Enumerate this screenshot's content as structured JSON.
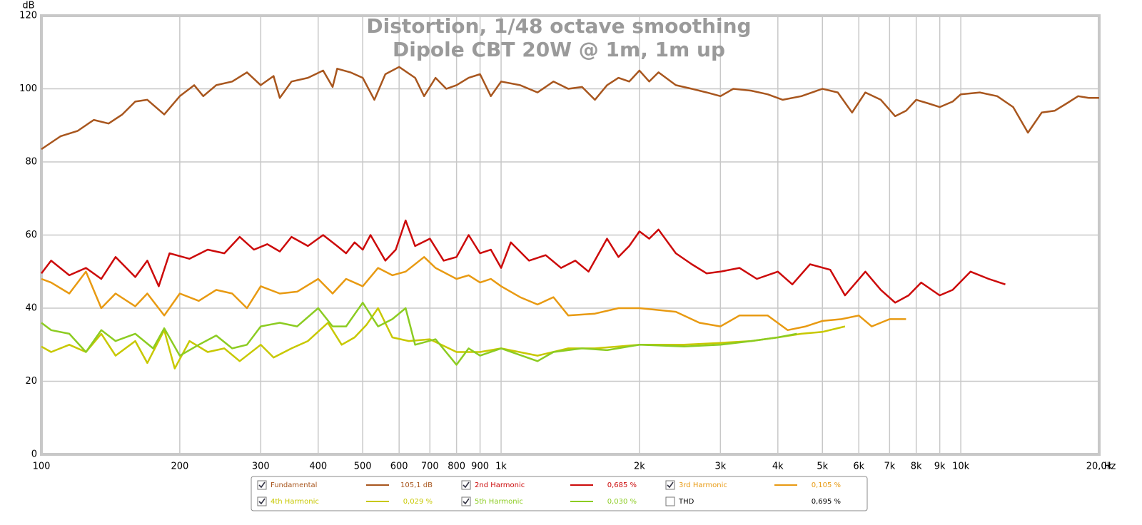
{
  "chart_data": {
    "type": "line",
    "title": "Distortion, 1/48 octave smoothing",
    "subtitle": "Dipole CBT 20W @ 1m, 1m up",
    "y_label": "dB",
    "x_label": "Hz",
    "log_x": true,
    "grid": true,
    "xlim": [
      100,
      20000
    ],
    "ylim": [
      0,
      120
    ],
    "yticks": [
      0,
      20,
      40,
      60,
      80,
      100,
      120
    ],
    "xticks": [
      100,
      200,
      300,
      400,
      500,
      600,
      700,
      800,
      900,
      {
        "value": 1000,
        "label": "1k"
      },
      {
        "value": 2000,
        "label": "2k"
      },
      {
        "value": 3000,
        "label": "3k"
      },
      {
        "value": 4000,
        "label": "4k"
      },
      {
        "value": 5000,
        "label": "5k"
      },
      {
        "value": 6000,
        "label": "6k"
      },
      {
        "value": 7000,
        "label": "7k"
      },
      {
        "value": 8000,
        "label": "8k"
      },
      {
        "value": 9000,
        "label": "9k"
      },
      {
        "value": 10000,
        "label": "10k"
      },
      {
        "value": 20000,
        "label": "20,0k"
      }
    ],
    "series": [
      {
        "name": "Fundamental",
        "color": "#a8561e",
        "checked": true,
        "readout": "105,1 dB",
        "x": [
          100,
          110,
          120,
          130,
          140,
          150,
          160,
          170,
          185,
          200,
          215,
          225,
          240,
          260,
          280,
          300,
          320,
          330,
          350,
          380,
          410,
          430,
          440,
          470,
          500,
          530,
          560,
          600,
          650,
          680,
          720,
          760,
          800,
          850,
          900,
          950,
          1000,
          1100,
          1200,
          1300,
          1400,
          1500,
          1600,
          1700,
          1800,
          1900,
          2000,
          2100,
          2200,
          2400,
          2600,
          2800,
          3000,
          3200,
          3500,
          3800,
          4100,
          4500,
          5000,
          5400,
          5800,
          6200,
          6700,
          7200,
          7600,
          8000,
          8500,
          9000,
          9600,
          10000,
          11000,
          12000,
          13000,
          14000,
          15000,
          16000,
          17000,
          18000,
          19000,
          20000
        ],
        "values": [
          83.5,
          87,
          88.5,
          91.5,
          90.5,
          93,
          96.5,
          97,
          93,
          98,
          101,
          98,
          101,
          102,
          104.5,
          101,
          103.5,
          97.5,
          102,
          103,
          105,
          100.5,
          105.5,
          104.5,
          103,
          97,
          104,
          106,
          103,
          98,
          103,
          100,
          101,
          103,
          104,
          98,
          102,
          101,
          99,
          102,
          100,
          100.5,
          97,
          101,
          103,
          102,
          105,
          102,
          104.5,
          101,
          100,
          99,
          98,
          100,
          99.5,
          98.5,
          97,
          98,
          100,
          99,
          93.5,
          99,
          97,
          92.5,
          94,
          97,
          96,
          95,
          96.5,
          98.5,
          99,
          98,
          95,
          88,
          93.5,
          94,
          96,
          98,
          97.5,
          97.5
        ]
      },
      {
        "name": "2nd Harmonic",
        "color": "#cc0a0a",
        "checked": true,
        "readout": "0,685 %",
        "x": [
          100,
          105,
          115,
          125,
          135,
          145,
          160,
          170,
          180,
          190,
          210,
          230,
          250,
          270,
          290,
          310,
          330,
          350,
          380,
          410,
          440,
          460,
          480,
          500,
          520,
          560,
          590,
          620,
          650,
          700,
          750,
          800,
          850,
          900,
          950,
          1000,
          1050,
          1150,
          1250,
          1350,
          1450,
          1550,
          1700,
          1800,
          1900,
          2000,
          2100,
          2200,
          2400,
          2600,
          2800,
          3000,
          3300,
          3600,
          4000,
          4300,
          4700,
          5200,
          5600,
          6200,
          6700,
          7200,
          7700,
          8200,
          9000,
          9600,
          10500,
          11500,
          12500
        ],
        "values": [
          49.5,
          53,
          49,
          51,
          48,
          54,
          48.5,
          53,
          46,
          55,
          53.5,
          56,
          55,
          59.5,
          56,
          57.5,
          55.5,
          59.5,
          57,
          60,
          57,
          55,
          58,
          56,
          60,
          53,
          56,
          64,
          57,
          59,
          53,
          54,
          60,
          55,
          56,
          51,
          58,
          53,
          54.5,
          51,
          53,
          50,
          59,
          54,
          57,
          61,
          59,
          61.5,
          55,
          52,
          49.5,
          50,
          51,
          48,
          50,
          46.5,
          52,
          50.5,
          43.5,
          50,
          45,
          41.5,
          43.5,
          47,
          43.5,
          45,
          50,
          48,
          46.5
        ]
      },
      {
        "name": "3rd Harmonic",
        "color": "#e89a12",
        "checked": true,
        "readout": "0,105 %",
        "x": [
          100,
          105,
          115,
          125,
          135,
          145,
          160,
          170,
          185,
          200,
          220,
          240,
          260,
          280,
          300,
          330,
          360,
          400,
          430,
          460,
          500,
          540,
          580,
          620,
          680,
          720,
          800,
          850,
          900,
          950,
          1000,
          1100,
          1200,
          1300,
          1400,
          1600,
          1800,
          2000,
          2200,
          2400,
          2700,
          3000,
          3300,
          3800,
          4200,
          4600,
          5000,
          5500,
          6000,
          6400,
          7000,
          7600
        ],
        "values": [
          48,
          47,
          44,
          50,
          40,
          44,
          40.5,
          44,
          38,
          44,
          42,
          45,
          44,
          40,
          46,
          44,
          44.5,
          48,
          44,
          48,
          46,
          51,
          49,
          50,
          54,
          51,
          48,
          49,
          47,
          48,
          46,
          43,
          41,
          43,
          38,
          38.5,
          40,
          40,
          39.5,
          39,
          36,
          35,
          38,
          38,
          34,
          35,
          36.5,
          37,
          38,
          35,
          37,
          37
        ]
      },
      {
        "name": "4th Harmonic",
        "color": "#c8c800",
        "checked": true,
        "readout": "0,029 %",
        "x": [
          100,
          105,
          115,
          125,
          135,
          145,
          160,
          170,
          185,
          195,
          210,
          230,
          250,
          270,
          300,
          320,
          350,
          380,
          420,
          450,
          480,
          510,
          540,
          580,
          630,
          700,
          800,
          900,
          1000,
          1200,
          1400,
          1600,
          1800,
          2000,
          2500,
          3000,
          3500,
          4000,
          4500,
          5000,
          5600
        ],
        "values": [
          29.5,
          28,
          30,
          28,
          33,
          27,
          31,
          25,
          34,
          23.5,
          31,
          28,
          29,
          25.5,
          30,
          26.5,
          29,
          31,
          36,
          30,
          32,
          35.5,
          40,
          32,
          31,
          31.5,
          28,
          28,
          29,
          27,
          29,
          29,
          29.5,
          30,
          30,
          30.5,
          31,
          32,
          33,
          33.5,
          35
        ]
      },
      {
        "name": "5th Harmonic",
        "color": "#8ccc22",
        "checked": true,
        "readout": "0,030 %",
        "x": [
          100,
          105,
          115,
          125,
          135,
          145,
          160,
          175,
          185,
          200,
          220,
          240,
          260,
          280,
          300,
          330,
          360,
          400,
          430,
          460,
          500,
          540,
          580,
          620,
          650,
          720,
          800,
          850,
          900,
          1000,
          1200,
          1300,
          1500,
          1700,
          2000,
          2500,
          3000,
          3500,
          4000,
          4400
        ],
        "values": [
          36,
          34,
          33,
          28,
          34,
          31,
          33,
          29,
          34.5,
          27,
          30,
          32.5,
          29,
          30,
          35,
          36,
          35,
          40,
          35,
          35,
          41.5,
          35,
          37,
          40,
          30,
          31.5,
          24.5,
          29,
          27,
          29,
          25.5,
          28,
          29,
          28.5,
          30,
          29.5,
          30,
          31,
          32,
          33
        ]
      }
    ],
    "legend_extra": {
      "name": "THD",
      "checked": false,
      "readout": "0,695 %"
    }
  }
}
